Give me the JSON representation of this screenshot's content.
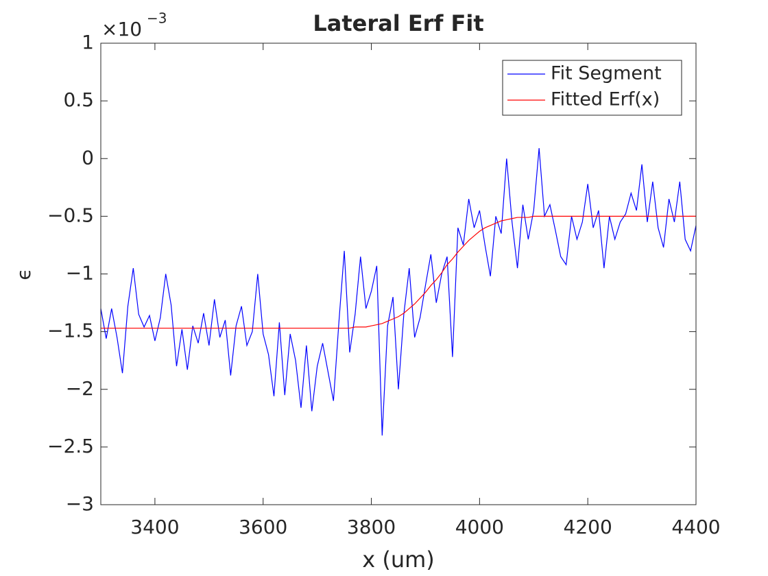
{
  "chart_data": {
    "type": "line",
    "title": "Lateral Erf Fit",
    "xlabel": "x (um)",
    "ylabel": "ϵ",
    "y_exponent_base": "×10",
    "y_exponent": "−3",
    "xlim": [
      3300,
      4400
    ],
    "ylim": [
      -3,
      1
    ],
    "xticks": [
      3400,
      3600,
      3800,
      4000,
      4200,
      4400
    ],
    "yticks": [
      {
        "value": -3,
        "label": "−3"
      },
      {
        "value": -2.5,
        "label": "−2.5"
      },
      {
        "value": -2,
        "label": "−2"
      },
      {
        "value": -1.5,
        "label": "−1.5"
      },
      {
        "value": -1,
        "label": "−1"
      },
      {
        "value": -0.5,
        "label": "−0.5"
      },
      0,
      0.5,
      1
    ],
    "legend_position": "upper-right",
    "x": [
      3300,
      3310,
      3320,
      3330,
      3340,
      3350,
      3360,
      3370,
      3380,
      3390,
      3400,
      3410,
      3420,
      3430,
      3440,
      3450,
      3460,
      3470,
      3480,
      3490,
      3500,
      3510,
      3520,
      3530,
      3540,
      3550,
      3560,
      3570,
      3580,
      3590,
      3600,
      3610,
      3620,
      3630,
      3640,
      3650,
      3660,
      3670,
      3680,
      3690,
      3700,
      3710,
      3720,
      3730,
      3740,
      3750,
      3760,
      3770,
      3780,
      3790,
      3800,
      3810,
      3820,
      3830,
      3840,
      3850,
      3860,
      3870,
      3880,
      3890,
      3900,
      3910,
      3920,
      3930,
      3940,
      3950,
      3960,
      3970,
      3980,
      3990,
      4000,
      4010,
      4020,
      4030,
      4040,
      4050,
      4060,
      4070,
      4080,
      4090,
      4100,
      4110,
      4120,
      4130,
      4140,
      4150,
      4160,
      4170,
      4180,
      4190,
      4200,
      4210,
      4220,
      4230,
      4240,
      4250,
      4260,
      4270,
      4280,
      4290,
      4300,
      4310,
      4320,
      4330,
      4340,
      4350,
      4360,
      4370,
      4380,
      4390,
      4400
    ],
    "series": [
      {
        "name": "Fit Segment",
        "color": "#0000ff",
        "values": [
          -1.3,
          -1.56,
          -1.3,
          -1.55,
          -1.86,
          -1.28,
          -0.95,
          -1.35,
          -1.46,
          -1.36,
          -1.58,
          -1.38,
          -1.0,
          -1.27,
          -1.8,
          -1.48,
          -1.83,
          -1.45,
          -1.6,
          -1.34,
          -1.62,
          -1.22,
          -1.55,
          -1.4,
          -1.88,
          -1.45,
          -1.28,
          -1.62,
          -1.5,
          -1.0,
          -1.52,
          -1.7,
          -2.06,
          -1.42,
          -2.05,
          -1.52,
          -1.75,
          -2.16,
          -1.62,
          -2.19,
          -1.8,
          -1.6,
          -1.85,
          -2.1,
          -1.42,
          -0.8,
          -1.68,
          -1.35,
          -0.85,
          -1.3,
          -1.15,
          -0.93,
          -2.4,
          -1.45,
          -1.2,
          -2.0,
          -1.35,
          -0.95,
          -1.55,
          -1.38,
          -1.1,
          -0.83,
          -1.25,
          -1.0,
          -0.85,
          -1.72,
          -0.6,
          -0.75,
          -0.35,
          -0.6,
          -0.45,
          -0.75,
          -1.02,
          -0.5,
          -0.65,
          0.0,
          -0.55,
          -0.95,
          -0.4,
          -0.7,
          -0.45,
          0.09,
          -0.5,
          -0.4,
          -0.62,
          -0.85,
          -0.92,
          -0.5,
          -0.7,
          -0.55,
          -0.22,
          -0.6,
          -0.45,
          -0.95,
          -0.5,
          -0.7,
          -0.55,
          -0.48,
          -0.3,
          -0.45,
          -0.05,
          -0.55,
          -0.2,
          -0.6,
          -0.77,
          -0.35,
          -0.55,
          -0.2,
          -0.7,
          -0.8,
          -0.58
        ]
      },
      {
        "name": "Fitted Erf(x)",
        "color": "#ff0000",
        "values": [
          -1.47,
          -1.47,
          -1.47,
          -1.47,
          -1.47,
          -1.47,
          -1.47,
          -1.47,
          -1.47,
          -1.47,
          -1.47,
          -1.47,
          -1.47,
          -1.47,
          -1.47,
          -1.47,
          -1.47,
          -1.47,
          -1.47,
          -1.47,
          -1.47,
          -1.47,
          -1.47,
          -1.47,
          -1.47,
          -1.47,
          -1.47,
          -1.47,
          -1.47,
          -1.47,
          -1.47,
          -1.47,
          -1.47,
          -1.47,
          -1.47,
          -1.47,
          -1.47,
          -1.47,
          -1.47,
          -1.47,
          -1.47,
          -1.47,
          -1.47,
          -1.47,
          -1.47,
          -1.47,
          -1.47,
          -1.46,
          -1.46,
          -1.46,
          -1.45,
          -1.44,
          -1.43,
          -1.41,
          -1.39,
          -1.37,
          -1.34,
          -1.3,
          -1.26,
          -1.21,
          -1.16,
          -1.1,
          -1.05,
          -0.99,
          -0.92,
          -0.87,
          -0.81,
          -0.76,
          -0.71,
          -0.67,
          -0.63,
          -0.6,
          -0.58,
          -0.56,
          -0.54,
          -0.53,
          -0.52,
          -0.51,
          -0.51,
          -0.51,
          -0.5,
          -0.5,
          -0.5,
          -0.5,
          -0.5,
          -0.5,
          -0.5,
          -0.5,
          -0.5,
          -0.5,
          -0.5,
          -0.5,
          -0.5,
          -0.5,
          -0.5,
          -0.5,
          -0.5,
          -0.5,
          -0.5,
          -0.5,
          -0.5,
          -0.5,
          -0.5,
          -0.5,
          -0.5,
          -0.5,
          -0.5,
          -0.5,
          -0.5,
          -0.5,
          -0.5
        ]
      }
    ]
  }
}
